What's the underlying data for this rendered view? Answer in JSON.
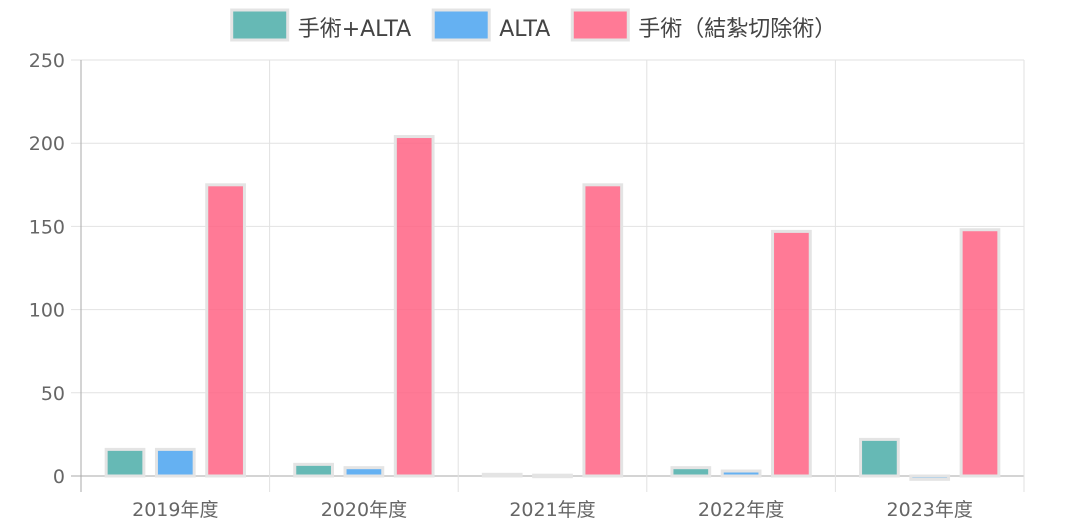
{
  "chart_data": {
    "type": "bar",
    "title": "",
    "xlabel": "",
    "ylabel": "",
    "categories": [
      "2019年度",
      "2020年度",
      "2021年度",
      "2022年度",
      "2023年度"
    ],
    "series": [
      {
        "name": "手術+ALTA",
        "color": "#4bada8",
        "values": [
          16,
          7,
          1,
          5,
          22
        ]
      },
      {
        "name": "ALTA",
        "color": "#4aa3f0",
        "values": [
          16,
          5,
          0.5,
          3,
          -2
        ]
      },
      {
        "name": "手術（結紮切除術）",
        "color": "#ff6384",
        "values": [
          175,
          204,
          175,
          147,
          148
        ]
      }
    ],
    "ylim": [
      0,
      250
    ],
    "yticks": [
      0,
      50,
      100,
      150,
      200,
      250
    ],
    "grid": true,
    "legend_position": "top"
  }
}
